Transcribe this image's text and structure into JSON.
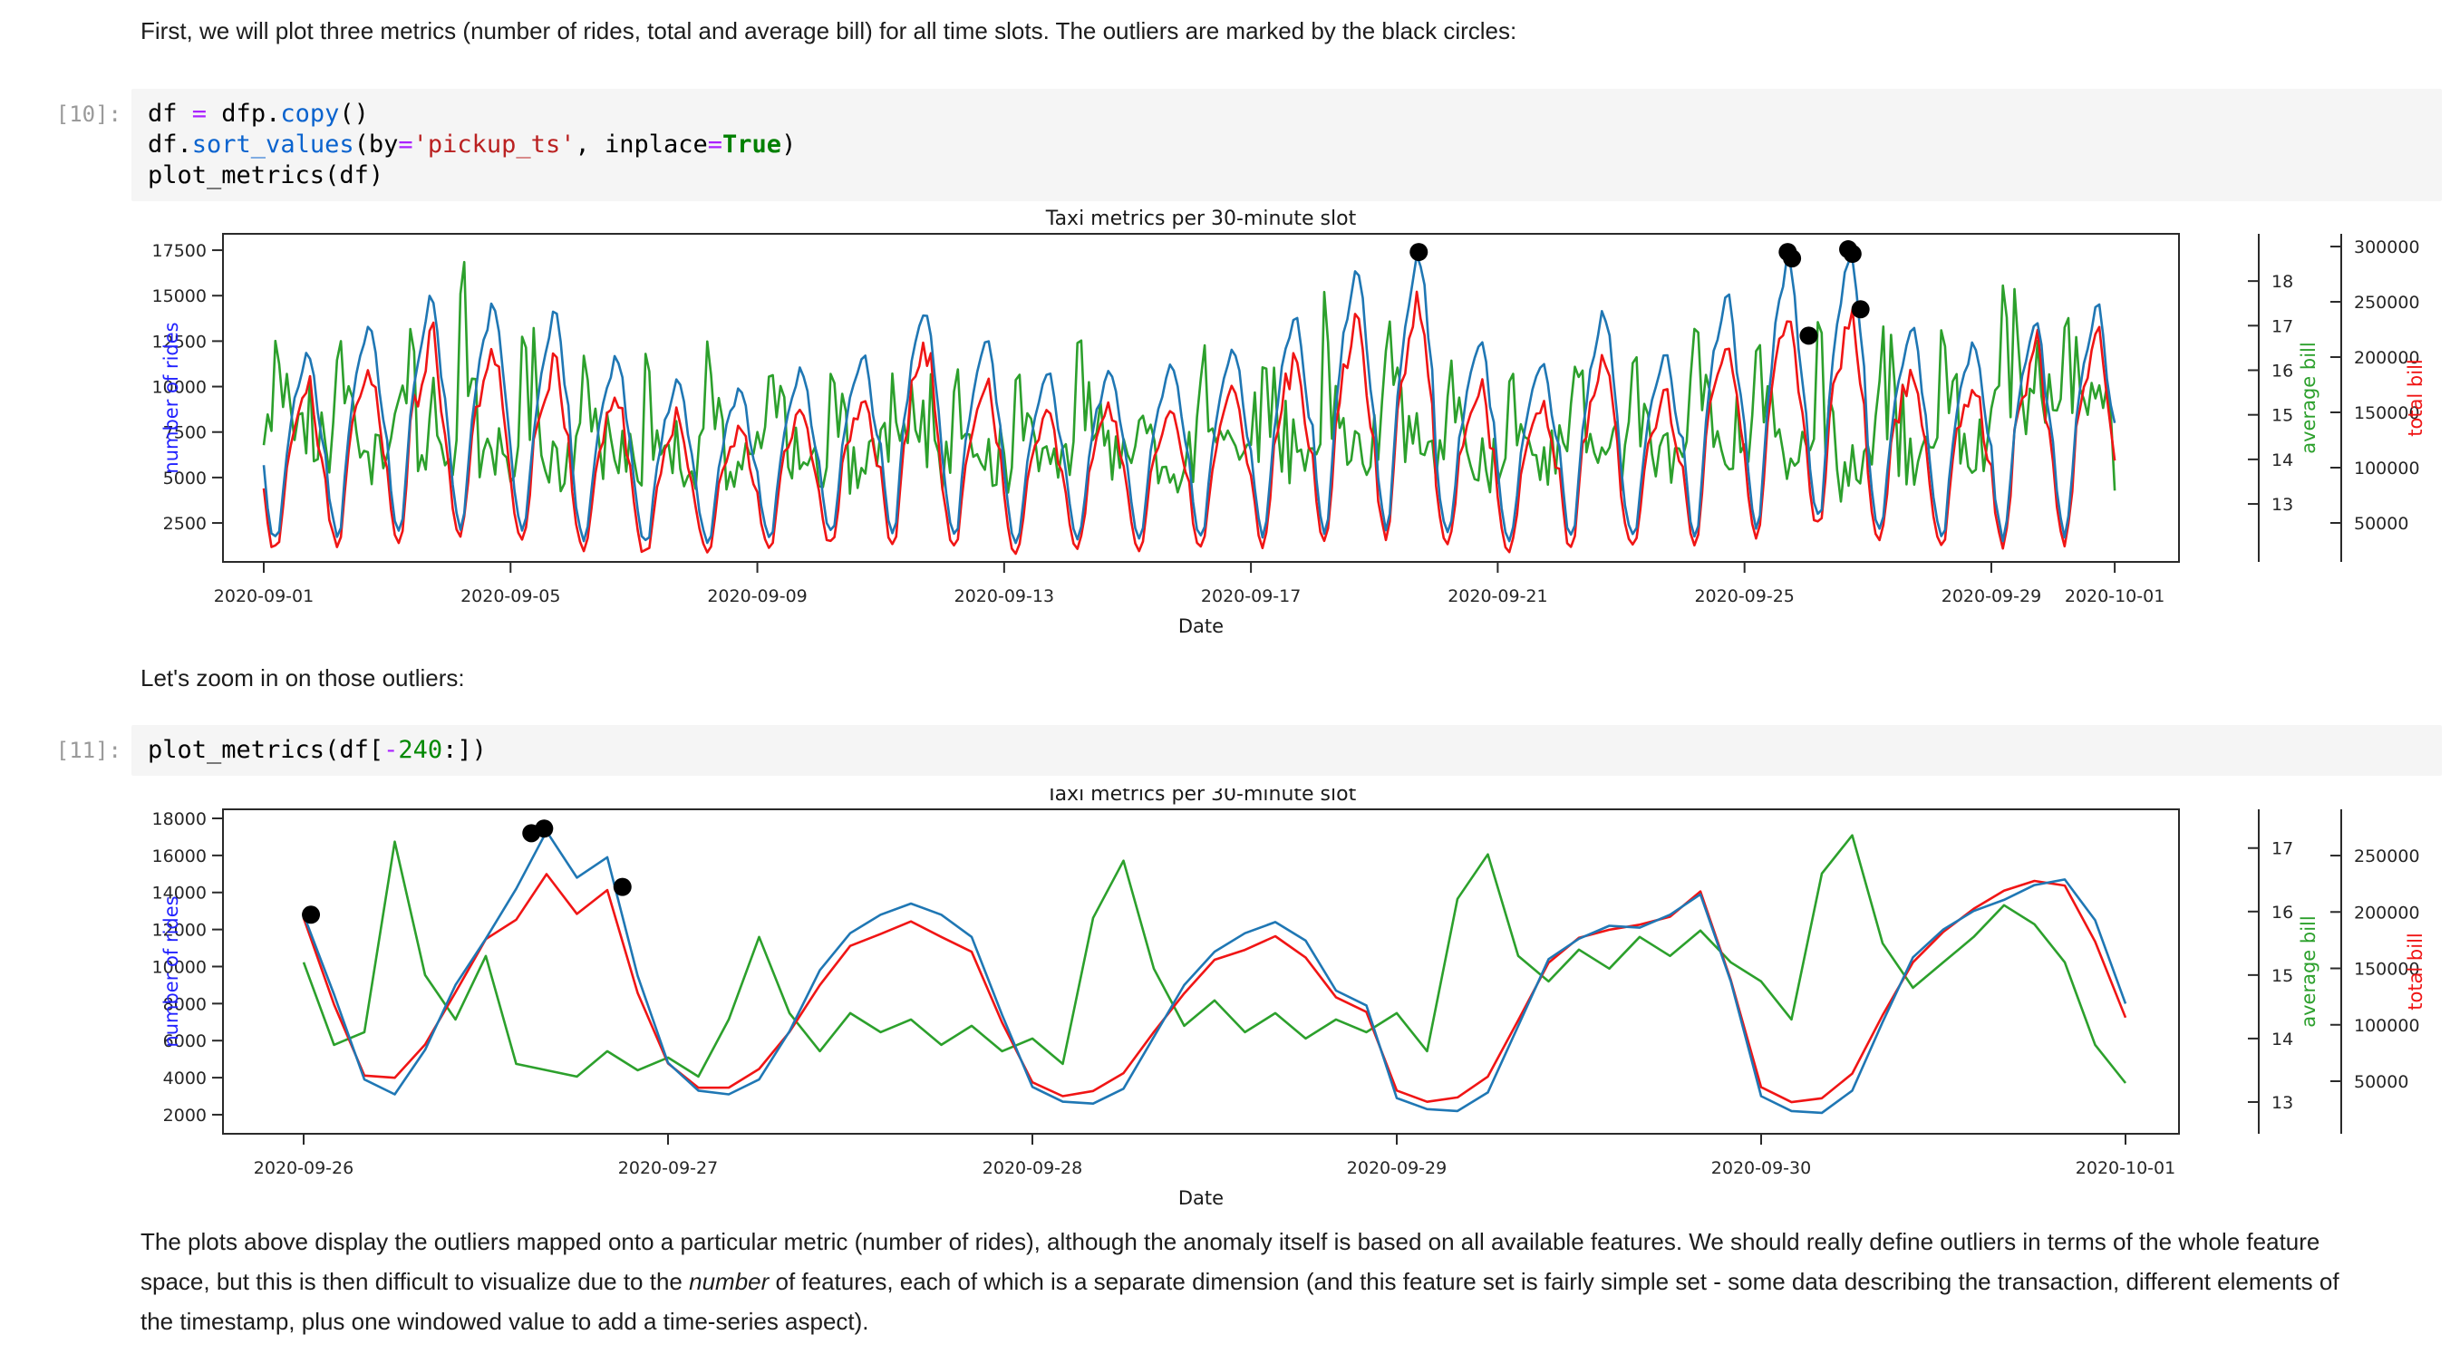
{
  "notebook": {
    "md1": "First, we will plot three metrics (number of rides, total and average bill) for all time slots. The outliers are marked by the black circles:",
    "md2": "Let's zoom in on those outliers:",
    "md3": {
      "part1": "The plots above display the outliers mapped onto a particular metric (number of rides), although the anomaly itself is based on all available features. We should really define outliers in terms of the whole feature space, but this is then difficult to visualize due to the ",
      "italic": "number",
      "part2": " of features, each of which is a separate dimension (and this feature set is fairly simple set - some data describing the transaction, different elements of the timestamp, plus one windowed value to add a time-series aspect)."
    },
    "cells": [
      {
        "prompt": "[10]:",
        "lines": [
          [
            [
              "df"
            ],
            [
              " "
            ],
            [
              "=",
              "o"
            ],
            [
              " dfp."
            ],
            [
              "copy",
              "f"
            ],
            [
              "()"
            ]
          ],
          [
            [
              "df."
            ],
            [
              "sort_values",
              "f"
            ],
            [
              "(by"
            ],
            [
              "=",
              "o"
            ],
            [
              "'pickup_ts'",
              "s"
            ],
            [
              ", inplace"
            ],
            [
              "=",
              "o"
            ],
            [
              "True",
              "k"
            ],
            [
              ")"
            ]
          ],
          [
            [
              "plot_metrics(df)"
            ]
          ]
        ]
      },
      {
        "prompt": "[11]:",
        "lines": [
          [
            [
              "plot_metrics(df["
            ],
            [
              "-",
              "o"
            ],
            [
              "240",
              "n"
            ],
            [
              ":])"
            ]
          ]
        ]
      }
    ]
  },
  "colors": {
    "rides_line": "#1f77b4",
    "avg_line": "#2ca02c",
    "total_line": "#f01515",
    "rides_label": "#2222ff",
    "avg_label": "#2ca02c",
    "total_label": "#f01515",
    "outlier": "#000000",
    "axis": "#2a2a2a",
    "tick_text": "#262626"
  },
  "chart_data": [
    {
      "type": "line",
      "title": "Taxi metrics per 30-minute slot",
      "xlabel": "Date",
      "x_ticks": [
        {
          "t": 0,
          "label": "2020-09-01"
        },
        {
          "t": 4,
          "label": "2020-09-05"
        },
        {
          "t": 8,
          "label": "2020-09-09"
        },
        {
          "t": 12,
          "label": "2020-09-13"
        },
        {
          "t": 16,
          "label": "2020-09-17"
        },
        {
          "t": 20,
          "label": "2020-09-21"
        },
        {
          "t": 24,
          "label": "2020-09-25"
        },
        {
          "t": 28,
          "label": "2020-09-29"
        },
        {
          "t": 30,
          "label": "2020-10-01"
        }
      ],
      "axes": {
        "rides": {
          "label": "number of rides",
          "range": [
            360,
            18400
          ],
          "ticks": [
            2500,
            5000,
            7500,
            10000,
            12500,
            15000,
            17500
          ]
        },
        "avg": {
          "label": "average bill",
          "range": [
            11.7,
            19.06
          ],
          "ticks": [
            13,
            14,
            15,
            16,
            17,
            18
          ]
        },
        "total": {
          "label": "total bill",
          "range": [
            14750,
            311500
          ],
          "ticks": [
            50000,
            100000,
            150000,
            200000,
            250000,
            300000
          ]
        }
      },
      "daily": {
        "step_hours": 1.5,
        "shape_hours": [
          0,
          2,
          4,
          6,
          9,
          12,
          15,
          17,
          19,
          21,
          23
        ],
        "shape_mult": [
          0.4,
          0.14,
          0.0,
          0.07,
          0.48,
          0.74,
          0.9,
          1.0,
          0.93,
          0.68,
          0.52
        ],
        "dates": [
          "2020-09-01",
          "2020-09-02",
          "2020-09-03",
          "2020-09-04",
          "2020-09-05",
          "2020-09-06",
          "2020-09-07",
          "2020-09-08",
          "2020-09-09",
          "2020-09-10",
          "2020-09-11",
          "2020-09-12",
          "2020-09-13",
          "2020-09-14",
          "2020-09-15",
          "2020-09-16",
          "2020-09-17",
          "2020-09-18",
          "2020-09-19",
          "2020-09-20",
          "2020-09-21",
          "2020-09-22",
          "2020-09-23",
          "2020-09-24",
          "2020-09-25",
          "2020-09-26",
          "2020-09-27",
          "2020-09-28",
          "2020-09-29",
          "2020-09-30"
        ],
        "rides_peak": [
          12000,
          13700,
          15000,
          14600,
          14200,
          11700,
          10400,
          10000,
          11100,
          11900,
          14400,
          12700,
          10900,
          11000,
          11400,
          12100,
          14000,
          16600,
          17300,
          12600,
          11500,
          14200,
          12000,
          15300,
          17200,
          17500,
          13500,
          12500,
          13900,
          14700
        ],
        "rides_low": [
          1400,
          1600,
          1800,
          2000,
          1700,
          1500,
          1300,
          1400,
          1500,
          1700,
          1900,
          1600,
          1400,
          1500,
          1500,
          1600,
          1700,
          1900,
          2100,
          1700,
          1500,
          1600,
          1500,
          1700,
          2000,
          2400,
          1800,
          1600,
          1500,
          1700
        ],
        "avg_base": [
          14.5,
          14.0,
          14.3,
          14.1,
          13.8,
          14.0,
          13.7,
          13.9,
          14.1,
          13.8,
          14.3,
          13.9,
          13.8,
          14.0,
          13.9,
          14.1,
          14.0,
          14.2,
          14.5,
          13.9,
          14.0,
          14.2,
          13.9,
          14.4,
          14.2,
          13.7,
          14.0,
          14.3,
          15.0,
          15.1
        ],
        "avg_spike": [
          17.0,
          17.6,
          16.4,
          18.6,
          17.8,
          16.6,
          15.8,
          17.0,
          16.2,
          16.8,
          15.6,
          16.4,
          15.9,
          17.0,
          15.7,
          16.5,
          16.1,
          16.7,
          17.4,
          16.3,
          16.9,
          16.0,
          16.6,
          17.4,
          17.6,
          17.2,
          17.0,
          17.1,
          17.4,
          17.5
        ],
        "end_point": {
          "t": 30,
          "rides": 8000,
          "avg": 13.3
        }
      },
      "outliers": [
        {
          "t": 18.72,
          "rides": 17400
        },
        {
          "t": 24.7,
          "rides": 17400
        },
        {
          "t": 24.77,
          "rides": 17050
        },
        {
          "t": 25.04,
          "rides": 12800
        },
        {
          "t": 25.68,
          "rides": 17550
        },
        {
          "t": 25.75,
          "rides": 17300
        },
        {
          "t": 25.88,
          "rides": 14250
        }
      ]
    },
    {
      "type": "line",
      "title": "Taxi metrics per 30-minute slot",
      "xlabel": "Date",
      "x_ticks": [
        {
          "t": 0,
          "label": "2020-09-26"
        },
        {
          "t": 1,
          "label": "2020-09-27"
        },
        {
          "t": 2,
          "label": "2020-09-28"
        },
        {
          "t": 3,
          "label": "2020-09-29"
        },
        {
          "t": 4,
          "label": "2020-09-30"
        },
        {
          "t": 5,
          "label": "2020-10-01"
        }
      ],
      "axes": {
        "rides": {
          "label": "number of rides",
          "range": [
            970,
            18490
          ],
          "ticks": [
            2000,
            4000,
            6000,
            8000,
            10000,
            12000,
            14000,
            16000,
            18000
          ]
        },
        "avg": {
          "label": "average bill",
          "range": [
            12.5,
            17.61
          ],
          "ticks": [
            13,
            14,
            15,
            16,
            17
          ]
        },
        "total": {
          "label": "total bill",
          "range": [
            3400,
            291000
          ],
          "ticks": [
            50000,
            100000,
            150000,
            200000,
            250000
          ]
        }
      },
      "series": {
        "start_date": "2020-09-26",
        "step_hours": 2,
        "rides": [
          12800,
          8500,
          3900,
          3100,
          5500,
          9000,
          11500,
          14200,
          17300,
          14800,
          15900,
          9500,
          4800,
          3300,
          3100,
          3900,
          6500,
          9800,
          11800,
          12800,
          13400,
          12800,
          11600,
          7400,
          3500,
          2700,
          2600,
          3400,
          6200,
          9000,
          10800,
          11800,
          12400,
          11400,
          8700,
          7900,
          2900,
          2300,
          2200,
          3200,
          6800,
          10400,
          11500,
          12200,
          12100,
          12800,
          13900,
          9200,
          3000,
          2200,
          2100,
          3300,
          7000,
          10500,
          12000,
          13000,
          13600,
          14400,
          14700,
          12500,
          8000
        ],
        "avg": [
          15.2,
          13.9,
          14.1,
          17.1,
          15.0,
          14.3,
          15.3,
          13.6,
          13.5,
          13.4,
          13.8,
          13.5,
          13.7,
          13.4,
          14.3,
          15.6,
          14.4,
          13.8,
          14.4,
          14.1,
          14.3,
          13.9,
          14.2,
          13.8,
          14.0,
          13.6,
          15.9,
          16.8,
          15.1,
          14.2,
          14.6,
          14.1,
          14.4,
          14.0,
          14.3,
          14.1,
          14.4,
          13.8,
          16.2,
          16.9,
          15.3,
          14.9,
          15.4,
          15.1,
          15.6,
          15.3,
          15.7,
          15.2,
          14.9,
          14.3,
          16.6,
          17.2,
          15.5,
          14.8,
          15.2,
          15.6,
          16.1,
          15.8,
          15.2,
          13.9,
          13.3
        ]
      },
      "outliers": [
        {
          "t": 0.02,
          "rides": 12800
        },
        {
          "t": 0.625,
          "rides": 17200
        },
        {
          "t": 0.66,
          "rides": 17450
        },
        {
          "t": 0.875,
          "rides": 14300
        }
      ]
    }
  ]
}
